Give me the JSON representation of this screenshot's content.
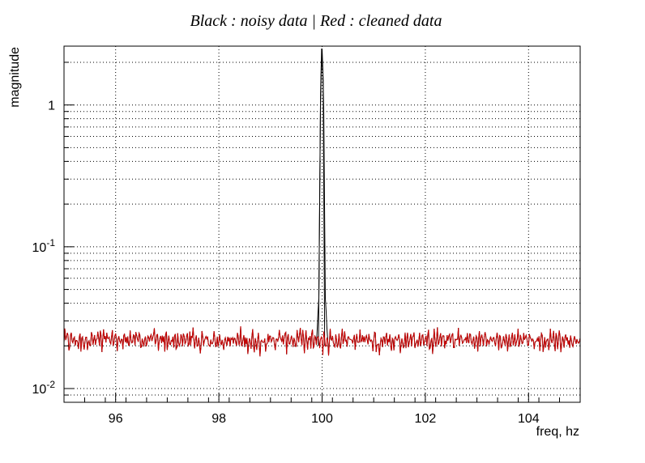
{
  "chart_data": {
    "type": "line",
    "title": "Black : noisy data | Red : cleaned data",
    "xlabel": "freq, hz",
    "ylabel": "magnitude",
    "xlim": [
      95,
      105
    ],
    "ylim": [
      0.008,
      2.6
    ],
    "yscale": "log",
    "grid": true,
    "x_ticks": [
      96,
      98,
      100,
      102,
      104
    ],
    "x_tick_labels": [
      "96",
      "98",
      "100",
      "102",
      "104"
    ],
    "y_major_ticks": [
      {
        "value": 0.01,
        "base": "10",
        "exp": "-2"
      },
      {
        "value": 0.1,
        "base": "10",
        "exp": "-1"
      },
      {
        "value": 1,
        "label": "1"
      }
    ],
    "series": [
      {
        "color": "#000000",
        "description_peak": {
          "x": [
            99.9,
            99.95,
            99.98,
            100.0,
            100.02,
            100.05,
            100.1
          ],
          "y": [
            0.023,
            0.05,
            1.5,
            2.5,
            1.5,
            0.05,
            0.023
          ]
        }
      },
      {
        "color": "#cc0000",
        "baseline": 0.022,
        "noise_low": 0.018,
        "noise_high": 0.026
      }
    ]
  }
}
